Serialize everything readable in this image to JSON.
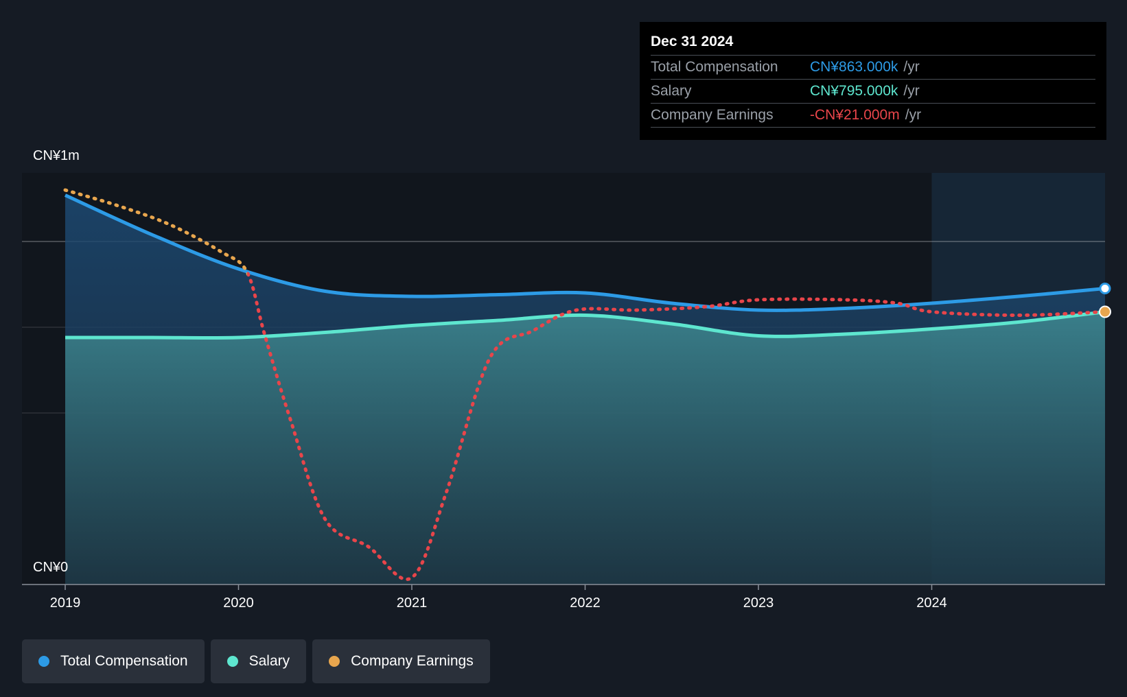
{
  "colors": {
    "total_compensation": "#2d9be6",
    "salary": "#5ee6cf",
    "company_earnings": "#e8a64e",
    "earnings_negative": "#e8454a",
    "background": "#151b24"
  },
  "tooltip": {
    "date": "Dec 31 2024",
    "rows": [
      {
        "label": "Total Compensation",
        "value": "CN¥863.000k",
        "unit": "/yr",
        "color": "#2d9be6"
      },
      {
        "label": "Salary",
        "value": "CN¥795.000k",
        "unit": "/yr",
        "color": "#5ee6cf"
      },
      {
        "label": "Company Earnings",
        "value": "-CN¥21.000m",
        "unit": "/yr",
        "color": "#e8454a"
      }
    ]
  },
  "legend": [
    {
      "label": "Total Compensation",
      "color": "#2d9be6"
    },
    {
      "label": "Salary",
      "color": "#5ee6cf"
    },
    {
      "label": "Company Earnings",
      "color": "#e8a64e"
    }
  ],
  "chart_data": {
    "type": "area",
    "title": "",
    "y_top_label": "CN¥1m",
    "y_bottom_label": "CN¥0",
    "ylim": [
      0,
      1200
    ],
    "unit": "CN¥k",
    "xlim": [
      2019.0,
      2025.0
    ],
    "x_ticks": [
      2019,
      2020,
      2021,
      2022,
      2023,
      2024
    ],
    "x_tick_labels": [
      "2019",
      "2020",
      "2021",
      "2022",
      "2023",
      "2024"
    ],
    "highlight_period": [
      2024.0,
      2025.0
    ],
    "series": [
      {
        "name": "Total Compensation",
        "x": [
          2019.0,
          2019.5,
          2020.0,
          2020.5,
          2021.0,
          2021.5,
          2022.0,
          2022.5,
          2023.0,
          2023.5,
          2024.0,
          2024.5,
          2025.0
        ],
        "values": [
          1135,
          1020,
          920,
          855,
          840,
          845,
          850,
          820,
          800,
          805,
          820,
          840,
          863
        ]
      },
      {
        "name": "Salary",
        "x": [
          2019.0,
          2019.5,
          2020.0,
          2020.5,
          2021.0,
          2021.5,
          2022.0,
          2022.5,
          2023.0,
          2023.5,
          2024.0,
          2024.5,
          2025.0
        ],
        "values": [
          720,
          720,
          720,
          735,
          755,
          770,
          785,
          760,
          725,
          730,
          745,
          765,
          795
        ]
      },
      {
        "name": "Company Earnings",
        "x": [
          2019.0,
          2019.3,
          2019.6,
          2019.9,
          2020.05,
          2020.15,
          2020.3,
          2020.5,
          2020.75,
          2021.0,
          2021.2,
          2021.45,
          2021.7,
          2021.95,
          2022.3,
          2022.7,
          2023.0,
          2023.5,
          2023.8,
          2024.0,
          2024.5,
          2025.0
        ],
        "values": [
          1150,
          1105,
          1050,
          970,
          910,
          730,
          480,
          190,
          110,
          20,
          270,
          660,
          740,
          800,
          800,
          810,
          830,
          830,
          820,
          795,
          785,
          795
        ]
      }
    ]
  }
}
